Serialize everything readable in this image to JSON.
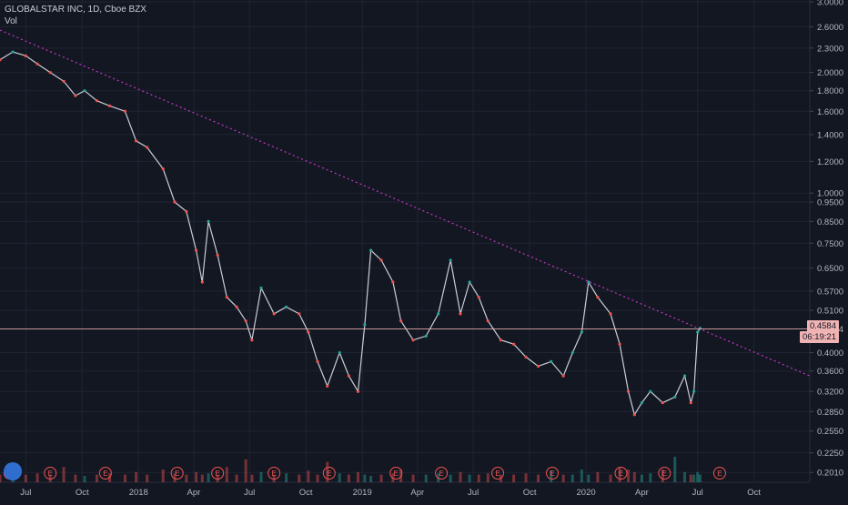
{
  "chart_data": {
    "type": "line",
    "symbol": "GLOBALSTAR INC, 1D, Cboe BZX",
    "volume_label": "Vol",
    "y_scale": "log",
    "ylim": [
      0.19,
      3.0
    ],
    "y_ticks": [
      "3.0000",
      "2.6000",
      "2.3000",
      "2.0000",
      "1.8000",
      "1.6000",
      "1.4000",
      "1.2000",
      "1.0000",
      "0.9500",
      "0.8500",
      "0.7500",
      "0.6500",
      "0.5700",
      "0.5100",
      "0.4584",
      "0.4000",
      "0.3600",
      "0.3200",
      "0.2850",
      "0.2550",
      "0.2250",
      "0.2010"
    ],
    "x_ticks": [
      "Jul",
      "Oct",
      "2018",
      "Apr",
      "Jul",
      "Oct",
      "2019",
      "Apr",
      "Jul",
      "Oct",
      "2020",
      "Apr",
      "Jul",
      "Oct"
    ],
    "x_tick_dates": [
      "2017-07-01",
      "2017-10-01",
      "2018-01-01",
      "2018-04-01",
      "2018-07-01",
      "2018-10-01",
      "2019-01-01",
      "2019-04-01",
      "2019-07-01",
      "2019-10-01",
      "2020-01-01",
      "2020-04-01",
      "2020-07-01",
      "2020-10-01"
    ],
    "xlim": [
      "2017-05-20",
      "2020-12-31"
    ],
    "current_price": "0.4584",
    "countdown": "06:19:21",
    "trendline": {
      "start": {
        "date": "2017-05-20",
        "price": 2.55
      },
      "end": {
        "date": "2020-12-31",
        "price": 0.35
      }
    },
    "series": [
      {
        "x": [
          "2017-05-20",
          "2017-06-10",
          "2017-07-01",
          "2017-07-20",
          "2017-08-10",
          "2017-09-01",
          "2017-09-20",
          "2017-10-05",
          "2017-10-25",
          "2017-11-15",
          "2017-12-10",
          "2017-12-28",
          "2018-01-15",
          "2018-02-10",
          "2018-03-01",
          "2018-03-20",
          "2018-04-05",
          "2018-04-15",
          "2018-04-25",
          "2018-05-10",
          "2018-05-25",
          "2018-06-10",
          "2018-06-25",
          "2018-07-05",
          "2018-07-20",
          "2018-08-10",
          "2018-08-30",
          "2018-09-20",
          "2018-10-05",
          "2018-10-20",
          "2018-11-05",
          "2018-11-25",
          "2018-12-10",
          "2018-12-25",
          "2019-01-05",
          "2019-01-15",
          "2019-02-01",
          "2019-02-20",
          "2019-03-05",
          "2019-03-25",
          "2019-04-15",
          "2019-05-05",
          "2019-05-25",
          "2019-06-10",
          "2019-06-25",
          "2019-07-10",
          "2019-07-25",
          "2019-08-15",
          "2019-09-05",
          "2019-09-25",
          "2019-10-15",
          "2019-11-05",
          "2019-11-25",
          "2019-12-10",
          "2019-12-25",
          "2020-01-05",
          "2020-01-20",
          "2020-02-10",
          "2020-02-25",
          "2020-03-10",
          "2020-03-20",
          "2020-04-01",
          "2020-04-15",
          "2020-05-05",
          "2020-05-25",
          "2020-06-10",
          "2020-06-20",
          "2020-06-25",
          "2020-07-01",
          "2020-07-05"
        ],
        "values": [
          2.15,
          2.25,
          2.2,
          2.1,
          2.0,
          1.9,
          1.75,
          1.8,
          1.7,
          1.65,
          1.6,
          1.35,
          1.3,
          1.15,
          0.95,
          0.9,
          0.72,
          0.6,
          0.85,
          0.7,
          0.55,
          0.52,
          0.48,
          0.43,
          0.58,
          0.5,
          0.52,
          0.5,
          0.45,
          0.38,
          0.33,
          0.4,
          0.35,
          0.32,
          0.47,
          0.72,
          0.68,
          0.6,
          0.48,
          0.43,
          0.44,
          0.5,
          0.68,
          0.5,
          0.6,
          0.55,
          0.48,
          0.43,
          0.42,
          0.39,
          0.37,
          0.38,
          0.35,
          0.4,
          0.45,
          0.6,
          0.55,
          0.5,
          0.42,
          0.32,
          0.28,
          0.3,
          0.32,
          0.3,
          0.31,
          0.35,
          0.3,
          0.32,
          0.45,
          0.46
        ]
      }
    ],
    "volume": [
      0.3,
      0.4,
      0.3,
      0.35,
      0.3,
      0.6,
      0.3,
      0.25,
      0.3,
      0.35,
      0.3,
      0.4,
      0.3,
      0.5,
      0.35,
      0.3,
      0.4,
      0.3,
      0.35,
      0.3,
      0.6,
      0.3,
      0.9,
      0.3,
      0.4,
      0.3,
      0.35,
      0.3,
      0.45,
      0.3,
      0.8,
      0.35,
      0.3,
      0.4,
      0.3,
      0.25,
      0.3,
      0.35,
      0.5,
      0.3,
      0.3,
      0.35,
      0.3,
      0.4,
      0.3,
      0.3,
      0.35,
      0.3,
      0.3,
      0.35,
      0.3,
      0.45,
      0.3,
      0.3,
      0.5,
      0.3,
      0.4,
      0.3,
      0.6,
      0.5,
      0.4,
      0.3,
      0.35,
      0.5,
      1.0,
      0.4,
      0.3,
      0.3,
      0.4,
      0.3
    ],
    "earnings_markers": [
      "2017-06-05",
      "2017-08-10",
      "2017-11-08",
      "2018-03-05",
      "2018-05-10",
      "2018-08-10",
      "2018-11-08",
      "2019-02-25",
      "2019-05-10",
      "2019-08-10",
      "2019-11-07",
      "2020-02-27",
      "2020-05-08",
      "2020-08-06"
    ],
    "earnings_label": "E",
    "colors": {
      "background": "#131722",
      "up": "#26a69a",
      "down": "#ef5350",
      "trendline": "#c038c0",
      "price_line": "#f0b3b3",
      "grid": "#1f2433",
      "axis_text": "#b2b5be"
    }
  }
}
